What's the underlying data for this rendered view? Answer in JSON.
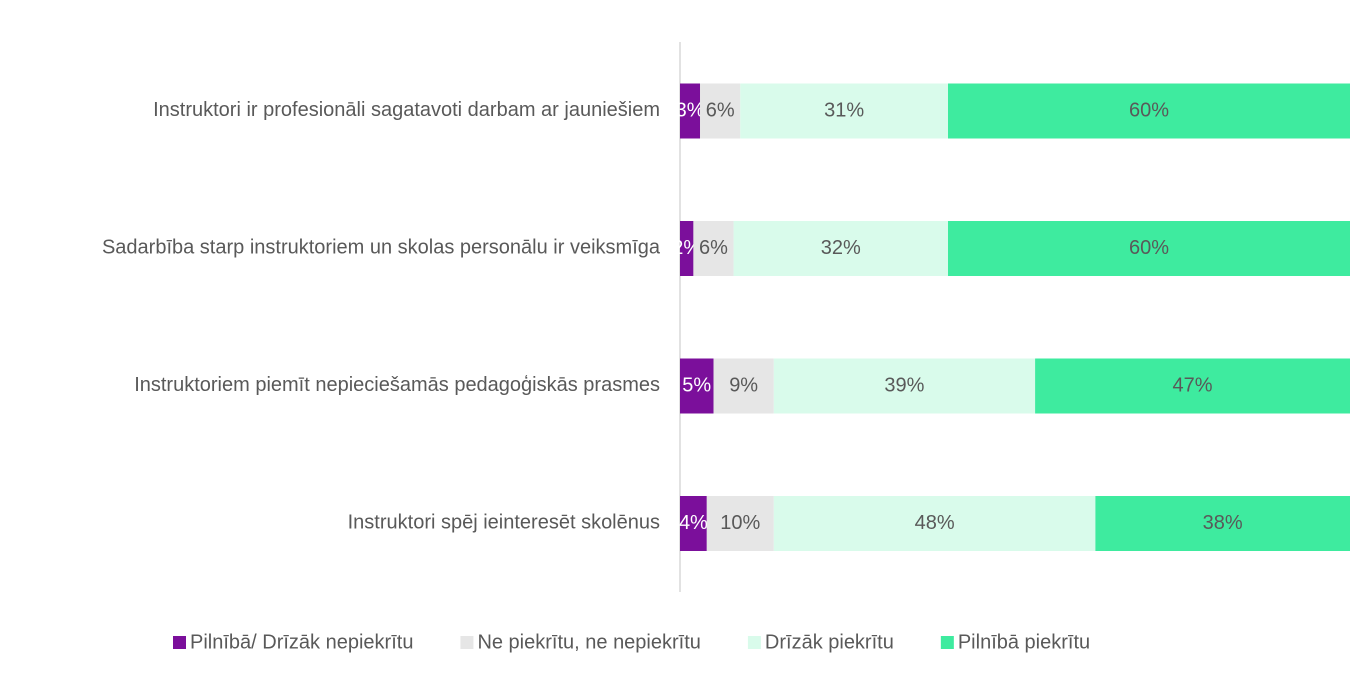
{
  "chart_data": {
    "type": "stacked-bar-horizontal",
    "categories": [
      "Instruktori ir profesionāli sagatavoti darbam ar jauniešiem",
      "Sadarbība starp instruktoriem un skolas personālu ir veiksmīga",
      "Instruktoriem piemīt nepieciešamās pedagoģiskās prasmes",
      "Instruktori spēj ieinteresēt skolēnus"
    ],
    "series": [
      {
        "name": "Pilnībā/ Drīzāk nepiekrītu",
        "color": "#7b0f9b",
        "values": [
          3,
          2,
          5,
          4
        ],
        "value_labels": [
          "3%",
          "2%",
          "5%",
          "4%"
        ]
      },
      {
        "name": "Ne piekrītu, ne nepiekrītu",
        "color": "#e6e6e6",
        "values": [
          6,
          6,
          9,
          10
        ],
        "value_labels": [
          "6%",
          "6%",
          "9%",
          "10%"
        ]
      },
      {
        "name": "Drīzāk piekrītu",
        "color": "#d9fbeb",
        "values": [
          31,
          32,
          39,
          48
        ],
        "value_labels": [
          "31%",
          "32%",
          "39%",
          "48%"
        ]
      },
      {
        "name": "Pilnībā piekrītu",
        "color": "#3eeb9f",
        "values": [
          60,
          60,
          47,
          38
        ],
        "value_labels": [
          "60%",
          "60%",
          "47%",
          "38%"
        ]
      }
    ],
    "xlim": [
      0,
      100
    ],
    "legend": "bottom"
  }
}
